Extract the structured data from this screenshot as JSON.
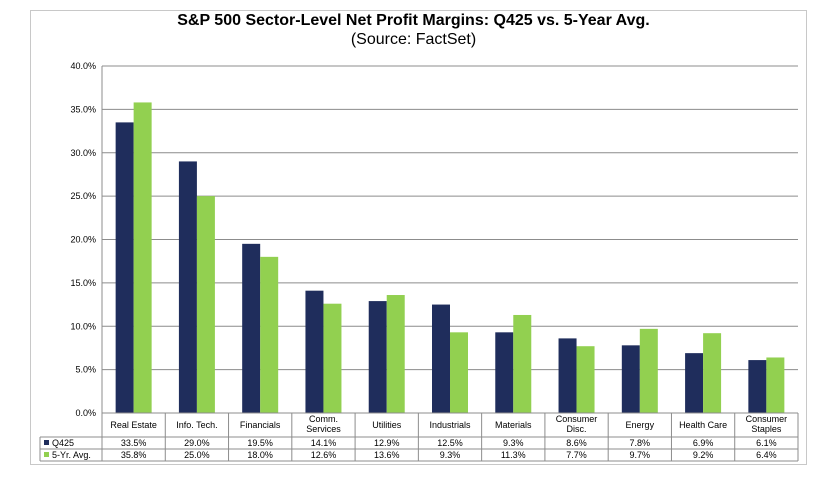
{
  "chart_data": {
    "type": "bar",
    "title": "S&P 500 Sector-Level Net Profit Margins: Q425 vs. 5-Year Avg.",
    "subtitle": "(Source: FactSet)",
    "categories": [
      [
        "Real Estate"
      ],
      [
        "Info. Tech."
      ],
      [
        "Financials"
      ],
      [
        "Comm.",
        "Services"
      ],
      [
        "Utilities"
      ],
      [
        "Industrials"
      ],
      [
        "Materials"
      ],
      [
        "Consumer",
        "Disc."
      ],
      [
        "Energy"
      ],
      [
        "Health Care"
      ],
      [
        "Consumer",
        "Staples"
      ]
    ],
    "series": [
      {
        "name": "Q425",
        "color": "#1f2d5c",
        "values": [
          33.5,
          29.0,
          19.5,
          14.1,
          12.9,
          12.5,
          9.3,
          8.6,
          7.8,
          6.9,
          6.1
        ],
        "table_values": [
          "33.5%",
          "29.0%",
          "19.5%",
          "14.1%",
          "12.9%",
          "12.5%",
          "9.3%",
          "8.6%",
          "7.8%",
          "6.9%",
          "6.1%"
        ]
      },
      {
        "name": "5-Yr. Avg.",
        "color": "#92d050",
        "values": [
          35.8,
          25.0,
          18.0,
          12.6,
          13.6,
          9.3,
          11.3,
          7.7,
          9.7,
          9.2,
          6.4
        ],
        "table_values": [
          "35.8%",
          "25.0%",
          "18.0%",
          "12.6%",
          "13.6%",
          "9.3%",
          "11.3%",
          "7.7%",
          "9.7%",
          "9.2%",
          "6.4%"
        ]
      }
    ],
    "ylim": [
      0,
      40
    ],
    "yticks": [
      "0.0%",
      "5.0%",
      "10.0%",
      "15.0%",
      "20.0%",
      "25.0%",
      "30.0%",
      "35.0%",
      "40.0%"
    ],
    "grid": true,
    "legend": "data-table"
  }
}
